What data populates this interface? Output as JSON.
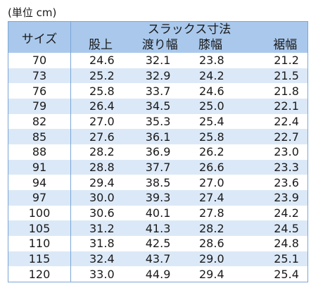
{
  "unit_note": "(単位 cm)",
  "table": {
    "size_header": "サイズ",
    "group_header": "スラックス寸法",
    "columns": [
      "股上",
      "渡り幅",
      "膝幅",
      "裾幅"
    ],
    "rows": [
      {
        "size": "70",
        "values": [
          "24.6",
          "32.1",
          "23.8",
          "21.2"
        ]
      },
      {
        "size": "73",
        "values": [
          "25.2",
          "32.9",
          "24.2",
          "21.5"
        ]
      },
      {
        "size": "76",
        "values": [
          "25.8",
          "33.7",
          "24.6",
          "21.8"
        ]
      },
      {
        "size": "79",
        "values": [
          "26.4",
          "34.5",
          "25.0",
          "22.1"
        ]
      },
      {
        "size": "82",
        "values": [
          "27.0",
          "35.3",
          "25.4",
          "22.4"
        ]
      },
      {
        "size": "85",
        "values": [
          "27.6",
          "36.1",
          "25.8",
          "22.7"
        ]
      },
      {
        "size": "88",
        "values": [
          "28.2",
          "36.9",
          "26.2",
          "23.0"
        ]
      },
      {
        "size": "91",
        "values": [
          "28.8",
          "37.7",
          "26.6",
          "23.3"
        ]
      },
      {
        "size": "94",
        "values": [
          "29.4",
          "38.5",
          "27.0",
          "23.6"
        ]
      },
      {
        "size": "97",
        "values": [
          "30.0",
          "39.3",
          "27.4",
          "23.9"
        ]
      },
      {
        "size": "100",
        "values": [
          "30.6",
          "40.1",
          "27.8",
          "24.2"
        ]
      },
      {
        "size": "105",
        "values": [
          "31.2",
          "41.3",
          "28.2",
          "24.5"
        ]
      },
      {
        "size": "110",
        "values": [
          "31.8",
          "42.5",
          "28.6",
          "24.8"
        ]
      },
      {
        "size": "115",
        "values": [
          "32.4",
          "43.7",
          "29.0",
          "25.1"
        ]
      },
      {
        "size": "120",
        "values": [
          "33.0",
          "44.9",
          "29.4",
          "25.4"
        ]
      }
    ]
  },
  "colors": {
    "header_fill": "#a9c8ec",
    "stripe_fill": "#dbe8f7",
    "border": "#7aa6d6"
  }
}
